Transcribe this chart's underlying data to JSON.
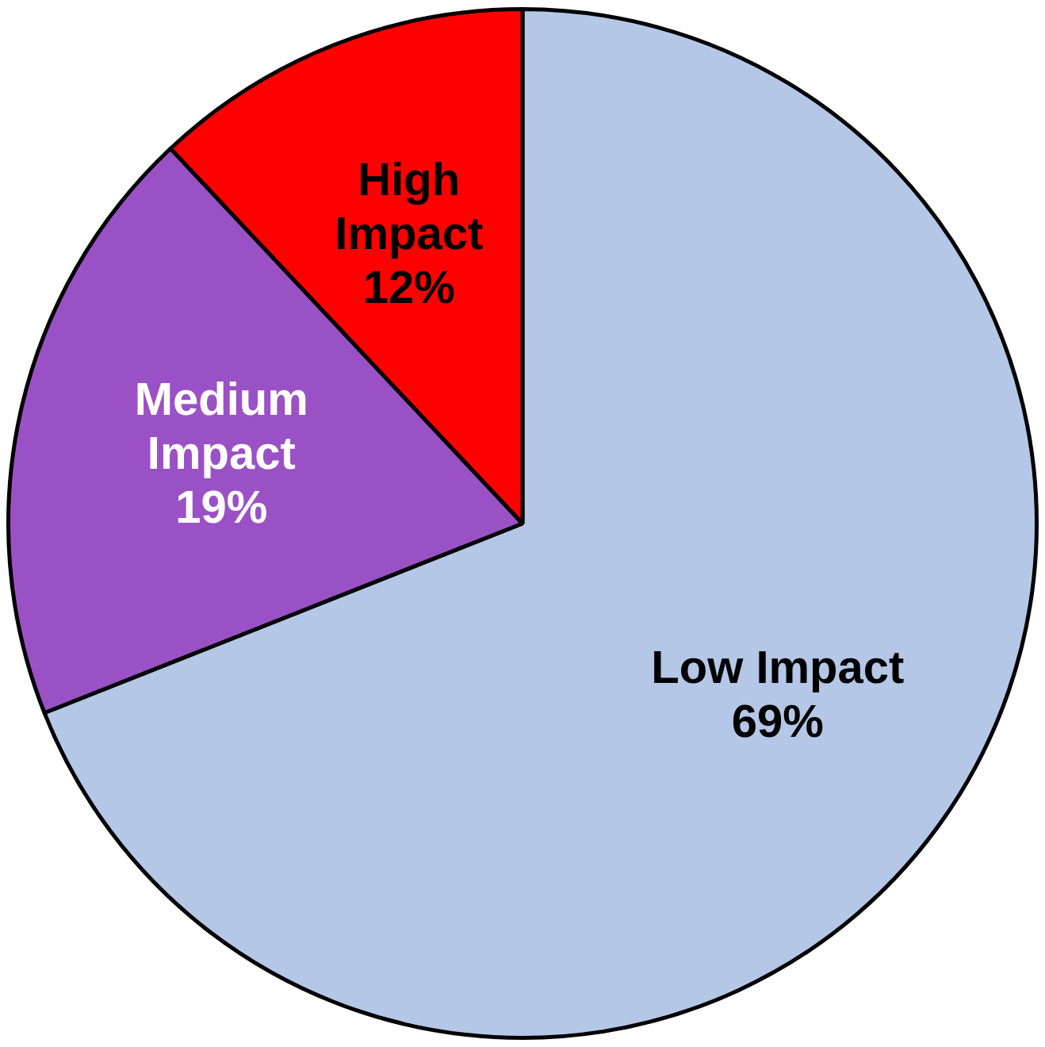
{
  "chart_data": {
    "type": "pie",
    "categories": [
      "Low Impact",
      "Medium Impact",
      "High Impact"
    ],
    "values": [
      69,
      19,
      12
    ],
    "colors": [
      "#b4c7e7",
      "#9b51c6",
      "#ff0000"
    ],
    "value_labels": [
      "69%",
      "19%",
      "12%"
    ]
  }
}
